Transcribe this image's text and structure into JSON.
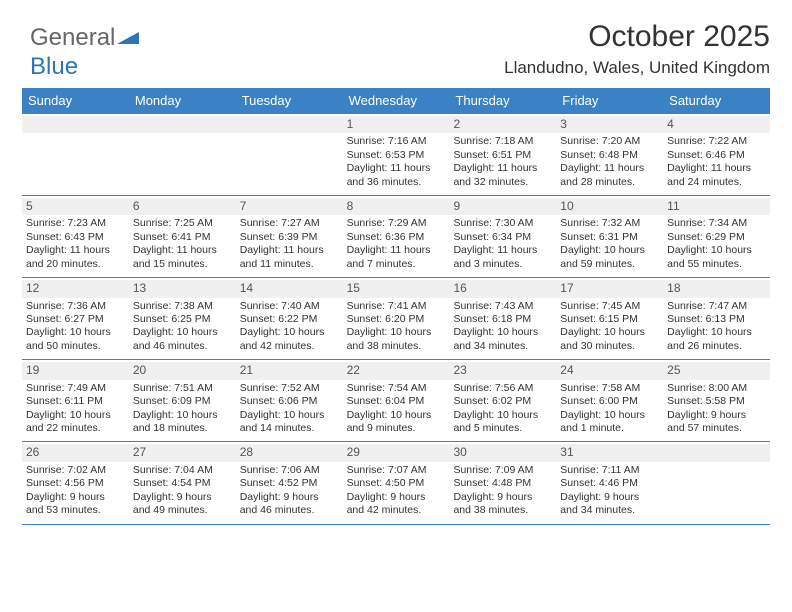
{
  "logo": {
    "part1": "General",
    "part2": "Blue"
  },
  "title": "October 2025",
  "location": "Llandudno, Wales, United Kingdom",
  "header_bg": "#3b82c4",
  "daynum_bg": "#f0f0f0",
  "text_color": "#333333",
  "weekdays": [
    "Sunday",
    "Monday",
    "Tuesday",
    "Wednesday",
    "Thursday",
    "Friday",
    "Saturday"
  ],
  "weeks": [
    [
      null,
      null,
      null,
      {
        "n": "1",
        "sr": "7:16 AM",
        "ss": "6:53 PM",
        "dl": "11 hours and 36 minutes."
      },
      {
        "n": "2",
        "sr": "7:18 AM",
        "ss": "6:51 PM",
        "dl": "11 hours and 32 minutes."
      },
      {
        "n": "3",
        "sr": "7:20 AM",
        "ss": "6:48 PM",
        "dl": "11 hours and 28 minutes."
      },
      {
        "n": "4",
        "sr": "7:22 AM",
        "ss": "6:46 PM",
        "dl": "11 hours and 24 minutes."
      }
    ],
    [
      {
        "n": "5",
        "sr": "7:23 AM",
        "ss": "6:43 PM",
        "dl": "11 hours and 20 minutes."
      },
      {
        "n": "6",
        "sr": "7:25 AM",
        "ss": "6:41 PM",
        "dl": "11 hours and 15 minutes."
      },
      {
        "n": "7",
        "sr": "7:27 AM",
        "ss": "6:39 PM",
        "dl": "11 hours and 11 minutes."
      },
      {
        "n": "8",
        "sr": "7:29 AM",
        "ss": "6:36 PM",
        "dl": "11 hours and 7 minutes."
      },
      {
        "n": "9",
        "sr": "7:30 AM",
        "ss": "6:34 PM",
        "dl": "11 hours and 3 minutes."
      },
      {
        "n": "10",
        "sr": "7:32 AM",
        "ss": "6:31 PM",
        "dl": "10 hours and 59 minutes."
      },
      {
        "n": "11",
        "sr": "7:34 AM",
        "ss": "6:29 PM",
        "dl": "10 hours and 55 minutes."
      }
    ],
    [
      {
        "n": "12",
        "sr": "7:36 AM",
        "ss": "6:27 PM",
        "dl": "10 hours and 50 minutes."
      },
      {
        "n": "13",
        "sr": "7:38 AM",
        "ss": "6:25 PM",
        "dl": "10 hours and 46 minutes."
      },
      {
        "n": "14",
        "sr": "7:40 AM",
        "ss": "6:22 PM",
        "dl": "10 hours and 42 minutes."
      },
      {
        "n": "15",
        "sr": "7:41 AM",
        "ss": "6:20 PM",
        "dl": "10 hours and 38 minutes."
      },
      {
        "n": "16",
        "sr": "7:43 AM",
        "ss": "6:18 PM",
        "dl": "10 hours and 34 minutes."
      },
      {
        "n": "17",
        "sr": "7:45 AM",
        "ss": "6:15 PM",
        "dl": "10 hours and 30 minutes."
      },
      {
        "n": "18",
        "sr": "7:47 AM",
        "ss": "6:13 PM",
        "dl": "10 hours and 26 minutes."
      }
    ],
    [
      {
        "n": "19",
        "sr": "7:49 AM",
        "ss": "6:11 PM",
        "dl": "10 hours and 22 minutes."
      },
      {
        "n": "20",
        "sr": "7:51 AM",
        "ss": "6:09 PM",
        "dl": "10 hours and 18 minutes."
      },
      {
        "n": "21",
        "sr": "7:52 AM",
        "ss": "6:06 PM",
        "dl": "10 hours and 14 minutes."
      },
      {
        "n": "22",
        "sr": "7:54 AM",
        "ss": "6:04 PM",
        "dl": "10 hours and 9 minutes."
      },
      {
        "n": "23",
        "sr": "7:56 AM",
        "ss": "6:02 PM",
        "dl": "10 hours and 5 minutes."
      },
      {
        "n": "24",
        "sr": "7:58 AM",
        "ss": "6:00 PM",
        "dl": "10 hours and 1 minute."
      },
      {
        "n": "25",
        "sr": "8:00 AM",
        "ss": "5:58 PM",
        "dl": "9 hours and 57 minutes."
      }
    ],
    [
      {
        "n": "26",
        "sr": "7:02 AM",
        "ss": "4:56 PM",
        "dl": "9 hours and 53 minutes."
      },
      {
        "n": "27",
        "sr": "7:04 AM",
        "ss": "4:54 PM",
        "dl": "9 hours and 49 minutes."
      },
      {
        "n": "28",
        "sr": "7:06 AM",
        "ss": "4:52 PM",
        "dl": "9 hours and 46 minutes."
      },
      {
        "n": "29",
        "sr": "7:07 AM",
        "ss": "4:50 PM",
        "dl": "9 hours and 42 minutes."
      },
      {
        "n": "30",
        "sr": "7:09 AM",
        "ss": "4:48 PM",
        "dl": "9 hours and 38 minutes."
      },
      {
        "n": "31",
        "sr": "7:11 AM",
        "ss": "4:46 PM",
        "dl": "9 hours and 34 minutes."
      },
      null
    ]
  ],
  "labels": {
    "sunrise": "Sunrise:",
    "sunset": "Sunset:",
    "daylight": "Daylight:"
  }
}
